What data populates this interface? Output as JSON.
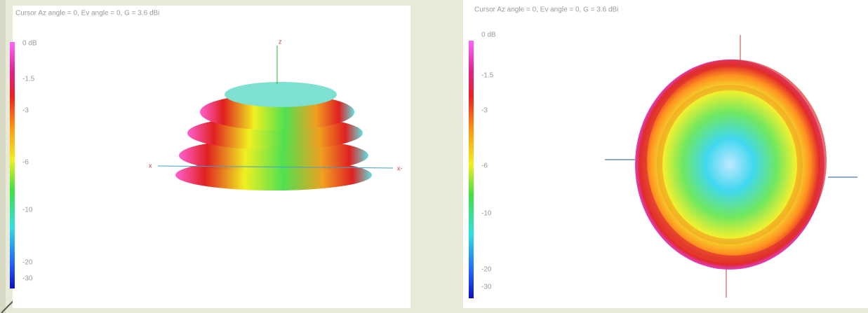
{
  "panels": [
    {
      "header": "Cursor Az angle = 0,  Ev angle = 0,  G = 3.6 dBi",
      "colorbar": [
        "0 dB",
        "-1.5",
        "-3",
        "-6",
        "-10",
        "-20",
        "-30"
      ],
      "axes": [
        "z",
        "x",
        "x-"
      ]
    },
    {
      "header": "Cursor Az angle = 0,  Ev angle = 0,  G = 3.6 dBi",
      "colorbar": [
        "0 dB",
        "-1.5",
        "-3",
        "-6",
        "-10",
        "-20",
        "-30"
      ]
    }
  ]
}
